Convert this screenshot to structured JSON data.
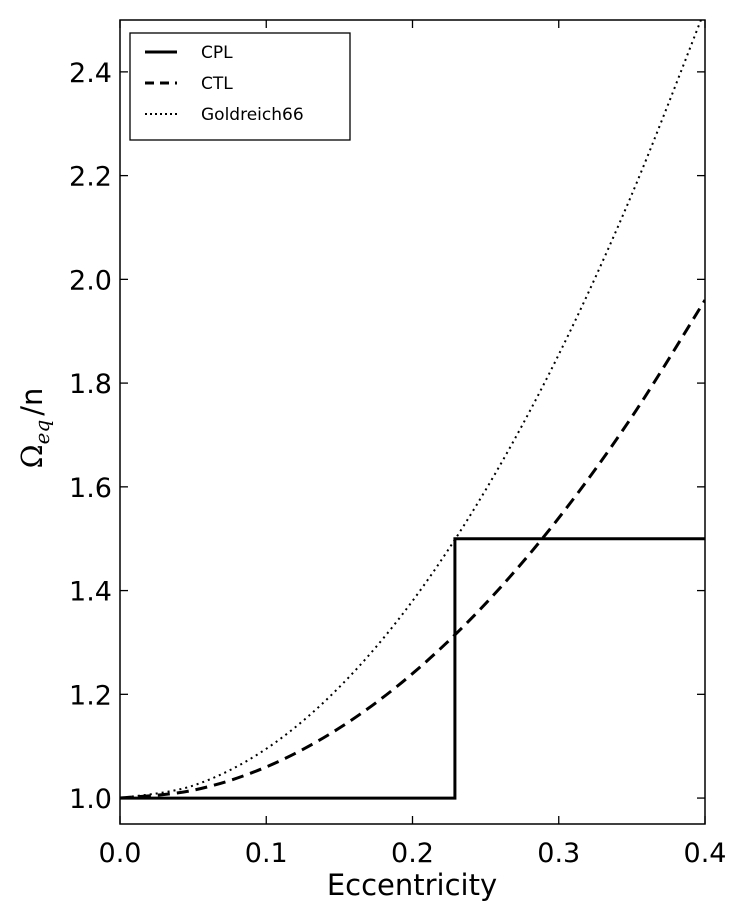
{
  "chart_data": {
    "type": "line",
    "xlabel": "Eccentricity",
    "ylabel": "/n",
    "ylabel_symbol": "Ω",
    "ylabel_subscript": "eq",
    "xlim": [
      0.0,
      0.4
    ],
    "ylim": [
      0.95,
      2.5
    ],
    "xticks": [
      "0.0",
      "0.1",
      "0.2",
      "0.3",
      "0.4"
    ],
    "yticks": [
      "1.0",
      "1.2",
      "1.4",
      "1.6",
      "1.8",
      "2.0",
      "2.2",
      "2.4"
    ],
    "grid": false,
    "legend_position": "top-left",
    "series": [
      {
        "name": "CPL",
        "style": "solid",
        "color": "#000000",
        "x": [
          0.0,
          0.229,
          0.229,
          0.4
        ],
        "y": [
          1.0,
          1.0,
          1.5,
          1.5
        ]
      },
      {
        "name": "CTL",
        "style": "dashed",
        "color": "#000000",
        "x": [
          0.0,
          0.05,
          0.1,
          0.15,
          0.2,
          0.25,
          0.3,
          0.35,
          0.4
        ],
        "y": [
          1.0,
          1.015,
          1.06,
          1.135,
          1.24,
          1.375,
          1.54,
          1.735,
          1.96
        ]
      },
      {
        "name": "Goldreich66",
        "style": "dotted",
        "color": "#000000",
        "x": [
          0.0,
          0.05,
          0.1,
          0.15,
          0.2,
          0.25,
          0.3,
          0.35,
          0.4
        ],
        "y": [
          1.0,
          1.024,
          1.095,
          1.214,
          1.38,
          1.594,
          1.855,
          2.164,
          2.52
        ]
      }
    ]
  }
}
